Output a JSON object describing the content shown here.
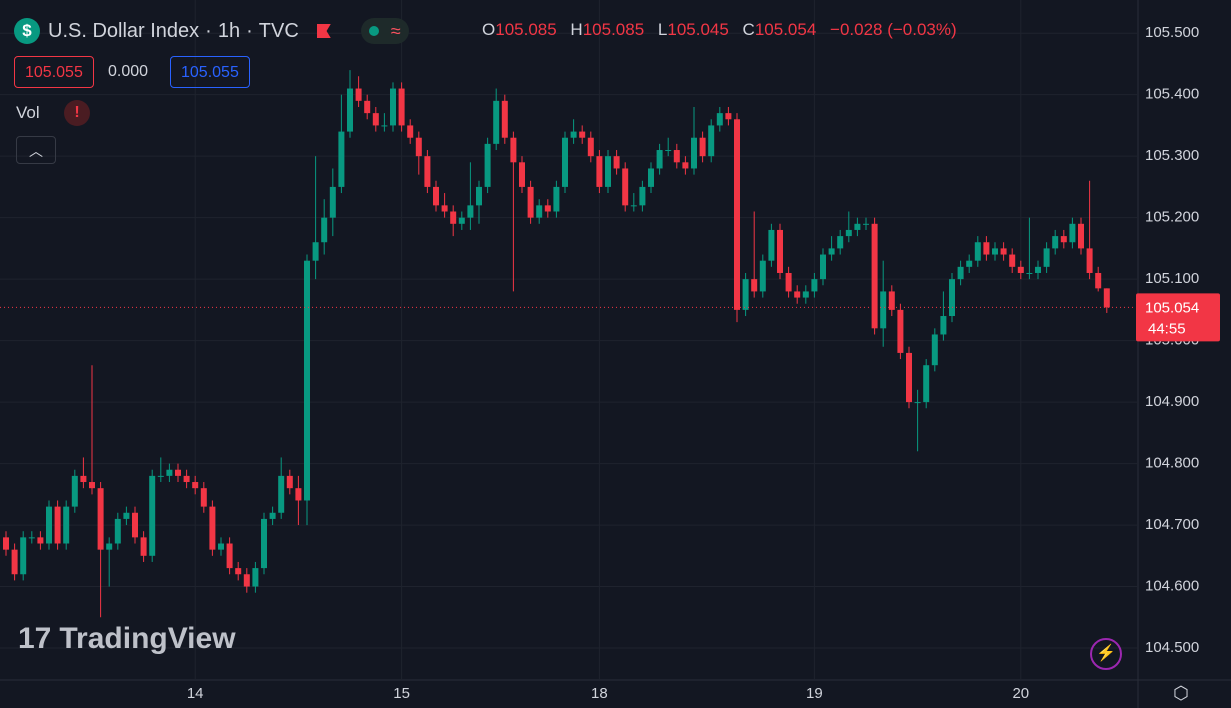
{
  "header": {
    "title": "U.S. Dollar Index",
    "interval": "1h",
    "source": "TVC",
    "o_label": "O",
    "h_label": "H",
    "l_label": "L",
    "c_label": "C",
    "change": "−0.028 (−0.03%)",
    "bid": "105.055",
    "spread": "0.000",
    "ask": "105.055",
    "volume_label": "Vol",
    "countdown": "44:55",
    "logo": "TradingView"
  },
  "chart_data": {
    "type": "candlestick",
    "up_color": "#089981",
    "down_color": "#f23645",
    "grid": true,
    "ylim": [
      104.448,
      105.554
    ],
    "yticks": [
      {
        "value": 104.5,
        "label": "104.500"
      },
      {
        "value": 104.6,
        "label": "104.600"
      },
      {
        "value": 104.7,
        "label": "104.700"
      },
      {
        "value": 104.8,
        "label": "104.800"
      },
      {
        "value": 104.9,
        "label": "104.900"
      },
      {
        "value": 105.0,
        "label": "105.000"
      },
      {
        "value": 105.1,
        "label": "105.100"
      },
      {
        "value": 105.2,
        "label": "105.200"
      },
      {
        "value": 105.3,
        "label": "105.300"
      },
      {
        "value": 105.4,
        "label": "105.400"
      },
      {
        "value": 105.5,
        "label": "105.500"
      }
    ],
    "categories": [
      null,
      null,
      null,
      null,
      null,
      null,
      null,
      null,
      null,
      null,
      null,
      null,
      null,
      null,
      null,
      null,
      null,
      null,
      null,
      null,
      null,
      null,
      "14",
      null,
      null,
      null,
      null,
      null,
      null,
      null,
      null,
      null,
      null,
      null,
      null,
      null,
      null,
      null,
      null,
      null,
      null,
      null,
      null,
      null,
      null,
      null,
      "15",
      null,
      null,
      null,
      null,
      null,
      null,
      null,
      null,
      null,
      null,
      null,
      null,
      null,
      null,
      null,
      null,
      null,
      null,
      null,
      null,
      null,
      null,
      "18",
      null,
      null,
      null,
      null,
      null,
      null,
      null,
      null,
      null,
      null,
      null,
      null,
      null,
      null,
      null,
      null,
      null,
      null,
      null,
      null,
      null,
      null,
      null,
      null,
      "19",
      null,
      null,
      null,
      null,
      null,
      null,
      null,
      null,
      null,
      null,
      null,
      null,
      null,
      null,
      null,
      null,
      null,
      null,
      null,
      null,
      null,
      null,
      null,
      "20",
      null,
      null,
      null,
      null,
      null,
      null,
      null,
      null,
      null,
      null
    ],
    "open": [
      104.68,
      104.66,
      104.62,
      104.68,
      104.68,
      104.67,
      104.73,
      104.67,
      104.73,
      104.78,
      104.77,
      104.76,
      104.66,
      104.67,
      104.71,
      104.72,
      104.68,
      104.65,
      104.78,
      104.78,
      104.79,
      104.78,
      104.77,
      104.76,
      104.73,
      104.66,
      104.67,
      104.63,
      104.62,
      104.6,
      104.63,
      104.71,
      104.72,
      104.78,
      104.76,
      104.74,
      105.13,
      105.16,
      105.2,
      105.25,
      105.34,
      105.41,
      105.39,
      105.37,
      105.35,
      105.35,
      105.41,
      105.35,
      105.33,
      105.3,
      105.25,
      105.22,
      105.21,
      105.19,
      105.2,
      105.22,
      105.25,
      105.32,
      105.39,
      105.33,
      105.29,
      105.25,
      105.2,
      105.22,
      105.21,
      105.25,
      105.33,
      105.34,
      105.33,
      105.3,
      105.25,
      105.3,
      105.28,
      105.22,
      105.22,
      105.25,
      105.28,
      105.31,
      105.31,
      105.29,
      105.28,
      105.33,
      105.3,
      105.35,
      105.37,
      105.36,
      105.05,
      105.1,
      105.08,
      105.13,
      105.18,
      105.11,
      105.08,
      105.07,
      105.08,
      105.1,
      105.14,
      105.15,
      105.17,
      105.18,
      105.19,
      105.19,
      105.02,
      105.08,
      105.05,
      104.98,
      104.9,
      104.9,
      104.96,
      105.01,
      105.04,
      105.1,
      105.12,
      105.13,
      105.16,
      105.14,
      105.15,
      105.14,
      105.12,
      105.11,
      105.11,
      105.12,
      105.15,
      105.17,
      105.16,
      105.19,
      105.15,
      105.11,
      105.085
    ],
    "high": [
      104.69,
      104.67,
      104.69,
      104.69,
      104.69,
      104.74,
      104.74,
      104.74,
      104.79,
      104.81,
      104.96,
      104.77,
      104.68,
      104.72,
      104.73,
      104.73,
      104.69,
      104.79,
      104.81,
      104.8,
      104.8,
      104.79,
      104.78,
      104.77,
      104.74,
      104.68,
      104.68,
      104.64,
      104.63,
      104.64,
      104.72,
      104.73,
      104.81,
      104.79,
      104.78,
      105.14,
      105.3,
      105.23,
      105.28,
      105.4,
      105.44,
      105.43,
      105.4,
      105.38,
      105.37,
      105.42,
      105.42,
      105.36,
      105.34,
      105.31,
      105.26,
      105.24,
      105.22,
      105.21,
      105.29,
      105.26,
      105.33,
      105.41,
      105.4,
      105.34,
      105.3,
      105.26,
      105.23,
      105.23,
      105.26,
      105.34,
      105.36,
      105.35,
      105.34,
      105.31,
      105.31,
      105.31,
      105.29,
      105.24,
      105.26,
      105.29,
      105.32,
      105.33,
      105.32,
      105.3,
      105.38,
      105.34,
      105.36,
      105.38,
      105.38,
      105.37,
      105.11,
      105.21,
      105.14,
      105.19,
      105.19,
      105.12,
      105.09,
      105.09,
      105.11,
      105.15,
      105.17,
      105.18,
      105.21,
      105.2,
      105.2,
      105.2,
      105.13,
      105.09,
      105.06,
      104.99,
      104.92,
      104.97,
      105.02,
      105.08,
      105.11,
      105.13,
      105.14,
      105.17,
      105.17,
      105.16,
      105.16,
      105.15,
      105.13,
      105.2,
      105.13,
      105.16,
      105.18,
      105.18,
      105.2,
      105.2,
      105.26,
      105.12,
      105.085
    ],
    "low": [
      104.65,
      104.61,
      104.61,
      104.67,
      104.66,
      104.66,
      104.66,
      104.66,
      104.72,
      104.76,
      104.75,
      104.55,
      104.6,
      104.66,
      104.7,
      104.67,
      104.64,
      104.64,
      104.77,
      104.77,
      104.77,
      104.76,
      104.75,
      104.72,
      104.65,
      104.65,
      104.62,
      104.61,
      104.59,
      104.59,
      104.62,
      104.7,
      104.71,
      104.75,
      104.7,
      104.7,
      105.1,
      105.14,
      105.17,
      105.24,
      105.33,
      105.38,
      105.36,
      105.34,
      105.34,
      105.34,
      105.34,
      105.32,
      105.27,
      105.24,
      105.21,
      105.2,
      105.17,
      105.18,
      105.18,
      105.19,
      105.24,
      105.31,
      105.32,
      105.08,
      105.24,
      105.19,
      105.19,
      105.2,
      105.2,
      105.24,
      105.32,
      105.32,
      105.29,
      105.24,
      105.24,
      105.27,
      105.21,
      105.21,
      105.21,
      105.24,
      105.27,
      105.3,
      105.28,
      105.27,
      105.27,
      105.29,
      105.29,
      105.34,
      105.35,
      105.03,
      105.04,
      105.07,
      105.07,
      105.12,
      105.1,
      105.07,
      105.06,
      105.06,
      105.07,
      105.09,
      105.13,
      105.14,
      105.16,
      105.17,
      105.18,
      105.01,
      104.99,
      105.04,
      104.97,
      104.89,
      104.82,
      104.89,
      104.95,
      105.0,
      105.03,
      105.09,
      105.11,
      105.12,
      105.13,
      105.13,
      105.13,
      105.11,
      105.1,
      105.1,
      105.1,
      105.11,
      105.14,
      105.15,
      105.15,
      105.14,
      105.1,
      105.08,
      105.045
    ],
    "close": [
      104.66,
      104.62,
      104.68,
      104.68,
      104.67,
      104.73,
      104.67,
      104.73,
      104.78,
      104.77,
      104.76,
      104.66,
      104.67,
      104.71,
      104.72,
      104.68,
      104.65,
      104.78,
      104.78,
      104.79,
      104.78,
      104.77,
      104.76,
      104.73,
      104.66,
      104.67,
      104.63,
      104.62,
      104.6,
      104.63,
      104.71,
      104.72,
      104.78,
      104.76,
      104.74,
      105.13,
      105.16,
      105.2,
      105.25,
      105.34,
      105.41,
      105.39,
      105.37,
      105.35,
      105.35,
      105.41,
      105.35,
      105.33,
      105.3,
      105.25,
      105.22,
      105.21,
      105.19,
      105.2,
      105.22,
      105.25,
      105.32,
      105.39,
      105.33,
      105.29,
      105.25,
      105.2,
      105.22,
      105.21,
      105.25,
      105.33,
      105.34,
      105.33,
      105.3,
      105.25,
      105.3,
      105.28,
      105.22,
      105.22,
      105.25,
      105.28,
      105.31,
      105.31,
      105.29,
      105.28,
      105.33,
      105.3,
      105.35,
      105.37,
      105.36,
      105.05,
      105.1,
      105.08,
      105.13,
      105.18,
      105.11,
      105.08,
      105.07,
      105.08,
      105.1,
      105.14,
      105.15,
      105.17,
      105.18,
      105.19,
      105.19,
      105.02,
      105.08,
      105.05,
      104.98,
      104.9,
      104.9,
      104.96,
      105.01,
      105.04,
      105.1,
      105.12,
      105.13,
      105.16,
      105.14,
      105.15,
      105.14,
      105.12,
      105.11,
      105.11,
      105.12,
      105.15,
      105.17,
      105.16,
      105.19,
      105.15,
      105.11,
      105.085,
      105.054
    ]
  }
}
